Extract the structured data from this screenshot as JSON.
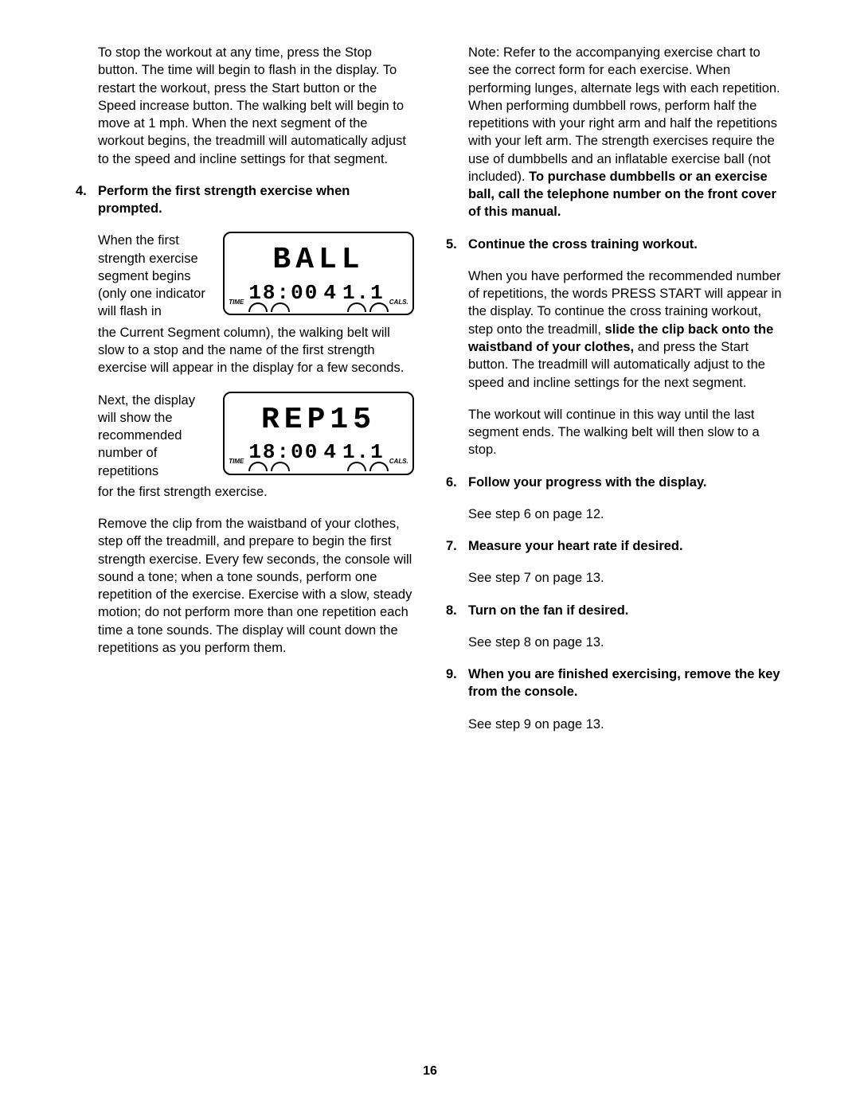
{
  "pageNumber": "16",
  "left": {
    "p1": "To stop the workout at any time, press the Stop button. The time will begin to flash in the display. To restart the workout, press the Start button or the Speed increase button. The walking belt will begin to move at 1 mph. When the next segment of the workout begins, the treadmill will automatically adjust to the speed and incline settings for that segment.",
    "step4num": "4.",
    "step4": "Perform the first strength exercise when prompted.",
    "p2a": "When the first strength exercise segment begins (only one indicator will flash in",
    "p2b": "the Current Segment column), the walking belt will slow to a stop and the name of the first strength exercise will appear in the display for a few seconds.",
    "p3a": "Next, the display will show the recommended number of repetitions",
    "p3b": "for the first strength exercise.",
    "p4": "Remove the clip from the waistband of your clothes, step off the treadmill, and prepare to begin the first strength exercise. Every few seconds, the console will sound a tone; when a tone sounds, perform one repetition of the exercise. Exercise with a slow, steady motion; do not perform more than one repetition each time a tone sounds. The display will count down the repetitions as you perform them.",
    "lcd1": {
      "main": "BALL",
      "time": "18:00",
      "mid": "4",
      "cals": "1.1",
      "timeLabel": "TIME",
      "calsLabel": "CALS."
    },
    "lcd2": {
      "main": "REP15",
      "time": "18:00",
      "mid": "4",
      "cals": "1.1",
      "timeLabel": "TIME",
      "calsLabel": "CALS."
    }
  },
  "right": {
    "p1a": "Note: Refer to the accompanying exercise chart to see the correct form for each exercise. When performing lunges, alternate legs with each repetition. When performing dumbbell rows, perform half the repetitions with your right arm and half the repetitions with your left arm. The strength exercises require the use of dumbbells and an inflatable exercise ball (not included). ",
    "p1b": "To purchase dumbbells or an exercise ball, call the telephone number on the front cover of this manual.",
    "step5num": "5.",
    "step5": "Continue the cross training workout.",
    "p2a": "When you have performed the recommended number of repetitions, the words PRESS START will appear in the display. To continue the cross training workout, step onto the treadmill, ",
    "p2b": "slide the clip back onto the waistband of your clothes,",
    "p2c": " and press the Start button. The treadmill will automatically adjust to the speed and incline settings for the next segment.",
    "p3": "The workout will continue in this way until the last segment ends. The walking belt will then slow to a stop.",
    "step6num": "6.",
    "step6": "Follow your progress with the display.",
    "p4": "See step 6 on page 12.",
    "step7num": "7.",
    "step7": "Measure your heart rate if desired.",
    "p5": "See step 7 on page 13.",
    "step8num": "8.",
    "step8": "Turn on the fan if desired.",
    "p6": "See step 8 on page 13.",
    "step9num": "9.",
    "step9": "When you are finished exercising, remove the key from the console.",
    "p7": "See step 9 on page 13."
  }
}
